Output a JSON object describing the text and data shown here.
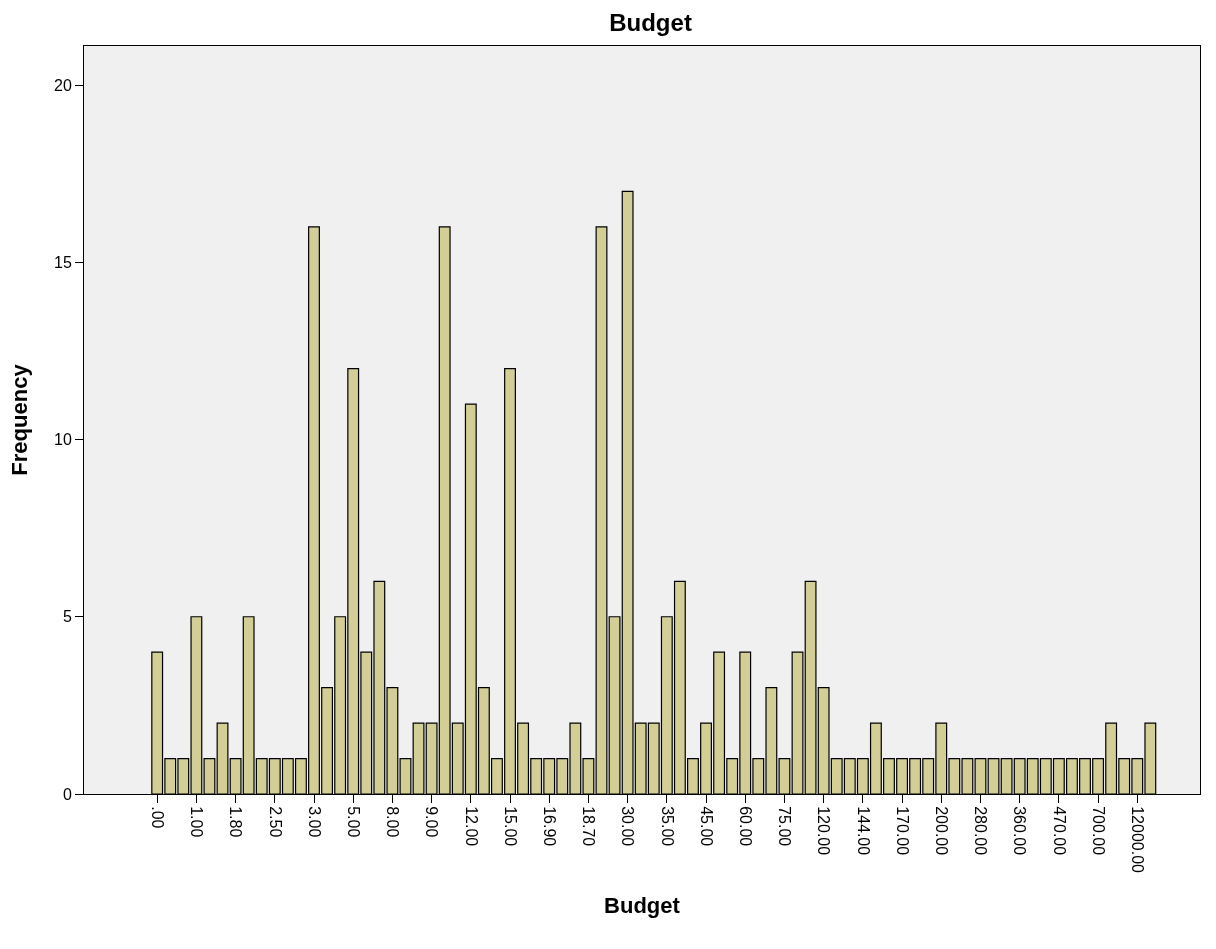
{
  "chart_data": {
    "type": "bar",
    "title": "Budget",
    "xlabel": "Budget",
    "ylabel": "Frequency",
    "categories": [
      ".00",
      null,
      null,
      "1.00",
      null,
      null,
      "1.80",
      null,
      null,
      "2.50",
      null,
      null,
      "3.00",
      null,
      null,
      "5.00",
      null,
      null,
      "8.00",
      null,
      null,
      "9.00",
      null,
      null,
      "12.00",
      null,
      null,
      "15.00",
      null,
      null,
      "16.90",
      null,
      null,
      "18.70",
      null,
      null,
      "30.00",
      null,
      null,
      "35.00",
      null,
      null,
      "45.00",
      null,
      null,
      "60.00",
      null,
      null,
      "75.00",
      null,
      null,
      "120.00",
      null,
      null,
      "144.00",
      null,
      null,
      "170.00",
      null,
      null,
      "200.00",
      null,
      null,
      "280.00",
      null,
      null,
      "360.00",
      null,
      null,
      "470.00",
      null,
      null,
      "700.00",
      null,
      null,
      "12000.00",
      null
    ],
    "values": [
      4,
      1,
      1,
      5,
      1,
      2,
      1,
      5,
      1,
      1,
      1,
      1,
      16,
      3,
      5,
      12,
      4,
      6,
      3,
      1,
      2,
      2,
      16,
      2,
      11,
      3,
      1,
      12,
      2,
      1,
      1,
      1,
      2,
      1,
      16,
      5,
      17,
      2,
      2,
      5,
      6,
      1,
      2,
      4,
      1,
      4,
      1,
      3,
      1,
      4,
      6,
      3,
      1,
      1,
      1,
      2,
      1,
      1,
      1,
      1,
      2,
      1,
      1,
      1,
      1,
      1,
      1,
      1,
      1,
      1,
      1,
      1,
      1,
      2,
      1,
      1,
      2
    ],
    "color": "#d3ce96",
    "ylim": [
      0,
      21.1
    ],
    "yticks": [
      0,
      5,
      10,
      15,
      20
    ],
    "grid": false,
    "legend": false
  }
}
